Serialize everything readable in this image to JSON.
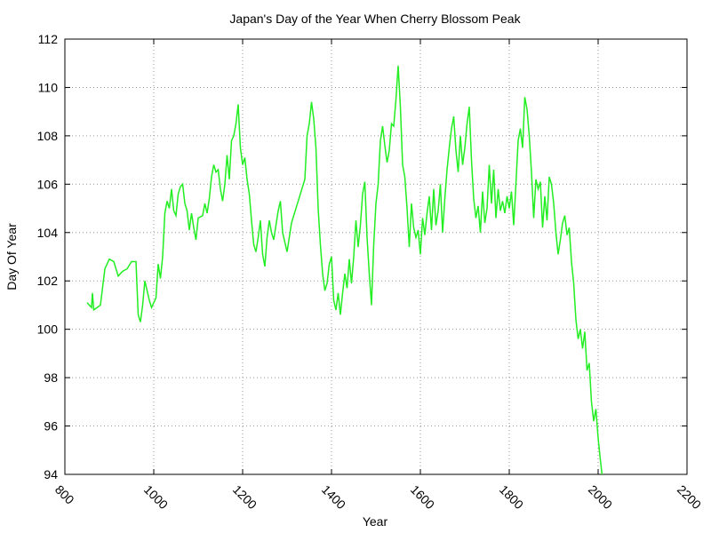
{
  "chart_data": {
    "type": "line",
    "title": "Japan's Day of the Year When Cherry Blossom Peak",
    "x_label": "Year",
    "y_label": "Day Of Year",
    "xlim": [
      800,
      2200
    ],
    "xticks": [
      800,
      1000,
      1200,
      1400,
      1600,
      1800,
      2000,
      2200
    ],
    "ylim": [
      94,
      112
    ],
    "yticks": [
      94,
      96,
      98,
      100,
      102,
      104,
      106,
      108,
      110,
      112
    ],
    "grid": true,
    "x": [
      850,
      860,
      862,
      865,
      880,
      890,
      900,
      910,
      920,
      930,
      940,
      950,
      960,
      965,
      970,
      975,
      980,
      990,
      995,
      1005,
      1010,
      1015,
      1020,
      1025,
      1030,
      1035,
      1040,
      1045,
      1050,
      1055,
      1060,
      1065,
      1070,
      1075,
      1080,
      1085,
      1090,
      1095,
      1100,
      1110,
      1115,
      1120,
      1125,
      1130,
      1135,
      1140,
      1145,
      1150,
      1155,
      1160,
      1165,
      1170,
      1175,
      1180,
      1185,
      1190,
      1195,
      1200,
      1205,
      1210,
      1215,
      1220,
      1225,
      1230,
      1235,
      1240,
      1245,
      1250,
      1255,
      1260,
      1265,
      1270,
      1280,
      1285,
      1290,
      1300,
      1310,
      1320,
      1330,
      1340,
      1345,
      1350,
      1355,
      1360,
      1365,
      1370,
      1375,
      1380,
      1385,
      1390,
      1395,
      1400,
      1405,
      1410,
      1415,
      1420,
      1425,
      1430,
      1435,
      1440,
      1445,
      1450,
      1455,
      1460,
      1465,
      1470,
      1475,
      1480,
      1485,
      1490,
      1495,
      1500,
      1505,
      1510,
      1515,
      1520,
      1525,
      1530,
      1535,
      1540,
      1545,
      1550,
      1555,
      1560,
      1565,
      1570,
      1575,
      1580,
      1585,
      1590,
      1595,
      1600,
      1605,
      1610,
      1615,
      1620,
      1625,
      1630,
      1635,
      1640,
      1645,
      1650,
      1655,
      1660,
      1665,
      1670,
      1675,
      1680,
      1685,
      1690,
      1695,
      1700,
      1705,
      1710,
      1715,
      1720,
      1725,
      1730,
      1735,
      1740,
      1745,
      1750,
      1755,
      1760,
      1765,
      1770,
      1775,
      1780,
      1785,
      1790,
      1795,
      1800,
      1805,
      1810,
      1815,
      1820,
      1825,
      1830,
      1835,
      1840,
      1845,
      1850,
      1855,
      1860,
      1865,
      1870,
      1875,
      1880,
      1885,
      1890,
      1895,
      1900,
      1905,
      1910,
      1915,
      1920,
      1925,
      1930,
      1935,
      1940,
      1945,
      1950,
      1955,
      1960,
      1965,
      1970,
      1975,
      1980,
      1985,
      1990,
      1995,
      2000,
      2005,
      2010
    ],
    "series": [
      {
        "name": "Day Of Year",
        "color": "#22ee22",
        "values": [
          101.1,
          100.9,
          101.5,
          100.8,
          101.0,
          102.5,
          102.9,
          102.8,
          102.2,
          102.4,
          102.5,
          102.8,
          102.8,
          100.6,
          100.3,
          101.0,
          102.0,
          101.2,
          100.9,
          101.3,
          102.7,
          102.1,
          103.0,
          104.8,
          105.3,
          105.0,
          105.8,
          104.9,
          104.7,
          105.6,
          105.9,
          106.0,
          105.2,
          104.9,
          104.1,
          104.8,
          104.2,
          103.7,
          104.6,
          104.7,
          105.2,
          104.8,
          105.4,
          106.3,
          106.8,
          106.5,
          106.6,
          105.8,
          105.3,
          106.0,
          107.2,
          106.2,
          107.8,
          108.0,
          108.5,
          109.3,
          107.5,
          106.8,
          107.1,
          106.2,
          105.6,
          104.5,
          103.5,
          103.2,
          103.8,
          104.5,
          103.1,
          102.6,
          103.8,
          104.5,
          104.0,
          103.7,
          104.9,
          105.3,
          104.0,
          103.2,
          104.4,
          105.0,
          105.6,
          106.2,
          108.0,
          108.5,
          109.4,
          108.7,
          107.5,
          105.0,
          103.5,
          102.3,
          101.6,
          101.9,
          102.7,
          103.0,
          101.2,
          100.8,
          101.5,
          100.6,
          101.5,
          102.3,
          101.7,
          102.9,
          101.9,
          103.0,
          104.5,
          103.4,
          104.3,
          105.6,
          106.1,
          103.8,
          102.3,
          101.0,
          103.5,
          105.2,
          106.0,
          107.8,
          108.4,
          107.6,
          106.9,
          107.4,
          108.5,
          108.4,
          109.5,
          110.9,
          109.2,
          106.8,
          106.3,
          105.0,
          103.4,
          105.2,
          104.2,
          103.8,
          104.1,
          103.1,
          104.6,
          103.9,
          104.8,
          105.5,
          104.1,
          105.8,
          104.3,
          104.9,
          106.0,
          104.0,
          105.4,
          106.6,
          107.5,
          108.3,
          108.8,
          107.4,
          106.5,
          108.0,
          106.8,
          107.5,
          108.5,
          109.2,
          107.0,
          105.4,
          104.6,
          105.1,
          104.0,
          105.7,
          104.4,
          105.0,
          106.8,
          105.2,
          106.6,
          104.6,
          105.8,
          104.9,
          105.3,
          104.8,
          105.5,
          105.0,
          105.7,
          104.3,
          106.0,
          107.8,
          108.3,
          107.5,
          109.6,
          109.1,
          108.0,
          106.5,
          104.6,
          106.2,
          105.8,
          106.1,
          104.2,
          105.5,
          104.5,
          106.3,
          106.0,
          105.2,
          104.0,
          103.1,
          103.7,
          104.4,
          104.7,
          103.9,
          104.2,
          102.8,
          101.9,
          100.4,
          99.6,
          100.0,
          99.2,
          99.9,
          98.3,
          98.6,
          97.0,
          96.2,
          96.7,
          95.5,
          94.6,
          93.8
        ]
      }
    ]
  }
}
